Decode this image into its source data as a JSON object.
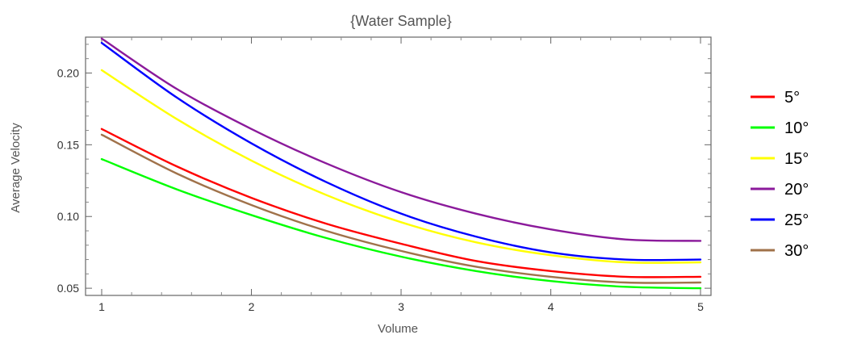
{
  "chart_data": {
    "type": "line",
    "title": "{Water Sample}",
    "xlabel": "Volume",
    "ylabel": "Average Velocity",
    "xlim": [
      1,
      5
    ],
    "ylim": [
      0.045,
      0.225
    ],
    "xticks": [
      1,
      2,
      3,
      4,
      5
    ],
    "xtick_labels": [
      "1",
      "2",
      "3",
      "4",
      "5"
    ],
    "yticks": [
      0.05,
      0.1,
      0.15,
      0.2
    ],
    "ytick_labels": [
      "0.05",
      "0.10",
      "0.15",
      "0.20"
    ],
    "grid": false,
    "legend_position": "right",
    "series": [
      {
        "name": "5°",
        "color": "#ff0000",
        "x": [
          1,
          1.5,
          2,
          2.5,
          3,
          3.5,
          4,
          4.5,
          5
        ],
        "y": [
          0.161,
          0.135,
          0.113,
          0.095,
          0.081,
          0.069,
          0.062,
          0.058,
          0.058
        ]
      },
      {
        "name": "10°",
        "color": "#00ff00",
        "x": [
          1,
          1.5,
          2,
          2.5,
          3,
          3.5,
          4,
          4.5,
          5
        ],
        "y": [
          0.14,
          0.119,
          0.101,
          0.085,
          0.072,
          0.062,
          0.055,
          0.051,
          0.05
        ]
      },
      {
        "name": "15°",
        "color": "#ffff00",
        "x": [
          1,
          1.5,
          2,
          2.5,
          3,
          3.5,
          4,
          4.5,
          5
        ],
        "y": [
          0.202,
          0.168,
          0.139,
          0.115,
          0.096,
          0.082,
          0.073,
          0.068,
          0.068
        ]
      },
      {
        "name": "20°",
        "color": "#8b1a9b",
        "x": [
          1,
          1.5,
          2,
          2.5,
          3,
          3.5,
          4,
          4.5,
          5
        ],
        "y": [
          0.224,
          0.189,
          0.161,
          0.137,
          0.117,
          0.102,
          0.091,
          0.084,
          0.083
        ]
      },
      {
        "name": "25°",
        "color": "#0000ff",
        "x": [
          1,
          1.5,
          2,
          2.5,
          3,
          3.5,
          4,
          4.5,
          5
        ],
        "y": [
          0.221,
          0.183,
          0.151,
          0.124,
          0.102,
          0.086,
          0.075,
          0.07,
          0.07
        ]
      },
      {
        "name": "30°",
        "color": "#a0724a",
        "x": [
          1,
          1.5,
          2,
          2.5,
          3,
          3.5,
          4,
          4.5,
          5
        ],
        "y": [
          0.157,
          0.13,
          0.108,
          0.09,
          0.076,
          0.065,
          0.058,
          0.054,
          0.054
        ]
      }
    ]
  }
}
